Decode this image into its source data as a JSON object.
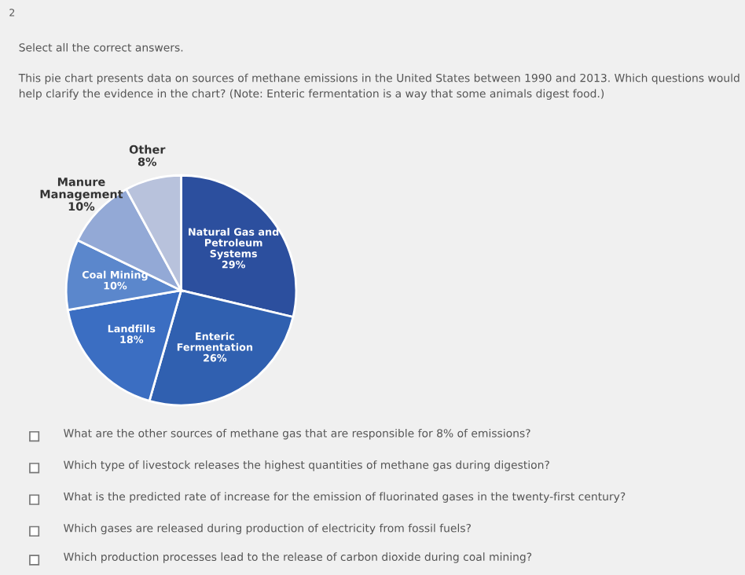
{
  "chart_data": {
    "type": "pie",
    "annotations": [
      "2",
      "Select all the correct answers.",
      "This pie chart presents data on sources of methane emissions in the United States between 1990 and 2013. Which questions would help clarify the evidence in the chart? (Note: Enteric fermentation is a way that some animals digest food.)",
      "What are the other sources of methane gas that are responsible for 8% of emissions?",
      "Which type of livestock releases the highest quantities of methane gas during digestion?",
      "What is the predicted rate of increase for the emission of fluorinated gases in the twenty-first century?",
      "Which gases are released during production of electricity from fossil fuels?",
      "Which production processes lead to the release of carbon dioxide during coal mining?"
    ],
    "categories": [
      "Natural Gas and\nPetroleum\nSystems",
      "Enteric\nFermentation",
      "Landfills",
      "Coal Mining",
      "Manure\nManagement",
      "Other"
    ],
    "values": [
      29,
      26,
      18,
      10,
      10,
      8
    ],
    "value_labels": [
      "29%",
      "26%",
      "18%",
      "10%",
      "10%",
      "8%"
    ],
    "colors": [
      "#2c4f9e",
      "#3060b0",
      "#3b6ec2",
      "#5b87cc",
      "#93a9d6",
      "#b8c2dc"
    ]
  }
}
